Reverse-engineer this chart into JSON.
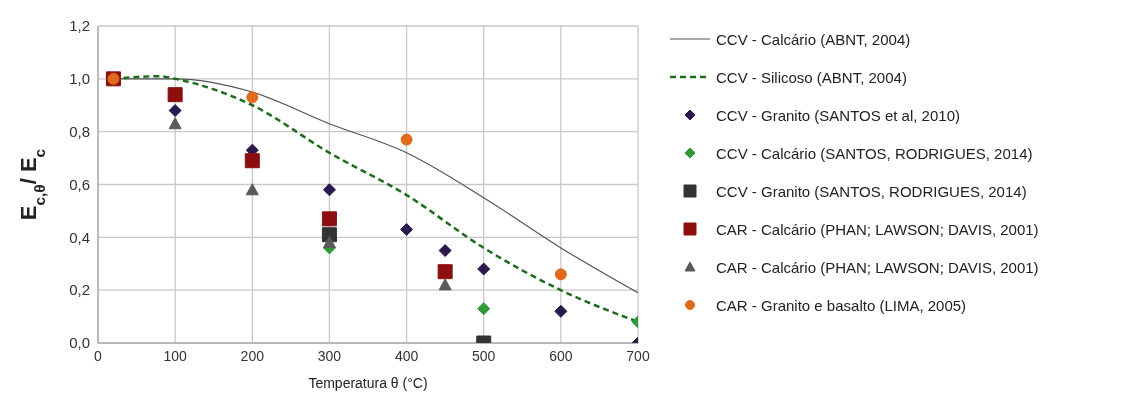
{
  "chart_data": {
    "type": "scatter",
    "xlabel": "Temperatura θ (°C)",
    "ylabel": "E$_{c,θ}$/ E$_{c}$",
    "xlim": [
      0,
      700
    ],
    "xticks": [
      0,
      100,
      200,
      300,
      400,
      500,
      600,
      700
    ],
    "ylim": [
      0,
      1.2
    ],
    "yticks": [
      {
        "value": 0,
        "label": "0,0"
      },
      {
        "value": 0.2,
        "label": "0,2"
      },
      {
        "value": 0.4,
        "label": "0,4"
      },
      {
        "value": 0.6,
        "label": "0,6"
      },
      {
        "value": 0.8,
        "label": "0,8"
      },
      {
        "value": 1.0,
        "label": "1,0"
      },
      {
        "value": 1.2,
        "label": "1,2"
      }
    ],
    "grid": true,
    "legend": "right",
    "series": [
      {
        "name": "CCV - Calcário (ABNT, 2004)",
        "type": "line",
        "color": "#555555",
        "line_style": "solid",
        "marker": "none",
        "x": [
          20,
          100,
          200,
          300,
          400,
          500,
          600,
          700
        ],
        "values": [
          1.0,
          1.0,
          0.95,
          0.83,
          0.72,
          0.55,
          0.36,
          0.19
        ]
      },
      {
        "name": "CCV - Silicoso (ABNT, 2004)",
        "type": "line",
        "color": "#1e6b1e",
        "line_style": "dashed",
        "marker": "none",
        "x": [
          20,
          80,
          100,
          200,
          300,
          400,
          500,
          600,
          700
        ],
        "values": [
          1.0,
          1.01,
          1.0,
          0.9,
          0.72,
          0.56,
          0.36,
          0.2,
          0.08
        ]
      },
      {
        "name": "CCV - Granito (SANTOS et al, 2010)",
        "type": "scatter",
        "color": "#2a1a4e",
        "marker": "diamond",
        "x": [
          100,
          200,
          300,
          400,
          450,
          500,
          600,
          700
        ],
        "values": [
          0.88,
          0.73,
          0.58,
          0.43,
          0.35,
          0.28,
          0.12,
          0.0
        ]
      },
      {
        "name": "CCV - Calcário (SANTOS, RODRIGUES, 2014)",
        "type": "scatter",
        "color": "#2e9a3a",
        "marker": "diamond",
        "x": [
          300,
          500,
          700
        ],
        "values": [
          0.36,
          0.13,
          0.08
        ]
      },
      {
        "name": "CCV - Granito (SANTOS, RODRIGUES, 2014)",
        "type": "scatter",
        "color": "#333333",
        "marker": "square",
        "x": [
          300,
          500
        ],
        "values": [
          0.41,
          0.0
        ]
      },
      {
        "name": "CAR - Calcário (PHAN; LAWSON; DAVIS, 2001)",
        "type": "scatter",
        "color": "#8b0f0f",
        "marker": "square",
        "x": [
          20,
          100,
          200,
          300,
          450
        ],
        "values": [
          1.0,
          0.94,
          0.69,
          0.47,
          0.27
        ]
      },
      {
        "name": "CAR - Calcário (PHAN; LAWSON; DAVIS, 2001)",
        "type": "scatter",
        "color": "#5a5a5a",
        "marker": "triangle",
        "x": [
          100,
          200,
          300,
          450
        ],
        "values": [
          0.83,
          0.58,
          0.38,
          0.22
        ]
      },
      {
        "name": "CAR - Granito e basalto (LIMA, 2005)",
        "type": "scatter",
        "color": "#e06a1c",
        "marker": "circle",
        "x": [
          20,
          200,
          400,
          600
        ],
        "values": [
          1.0,
          0.93,
          0.77,
          0.26
        ]
      }
    ]
  }
}
